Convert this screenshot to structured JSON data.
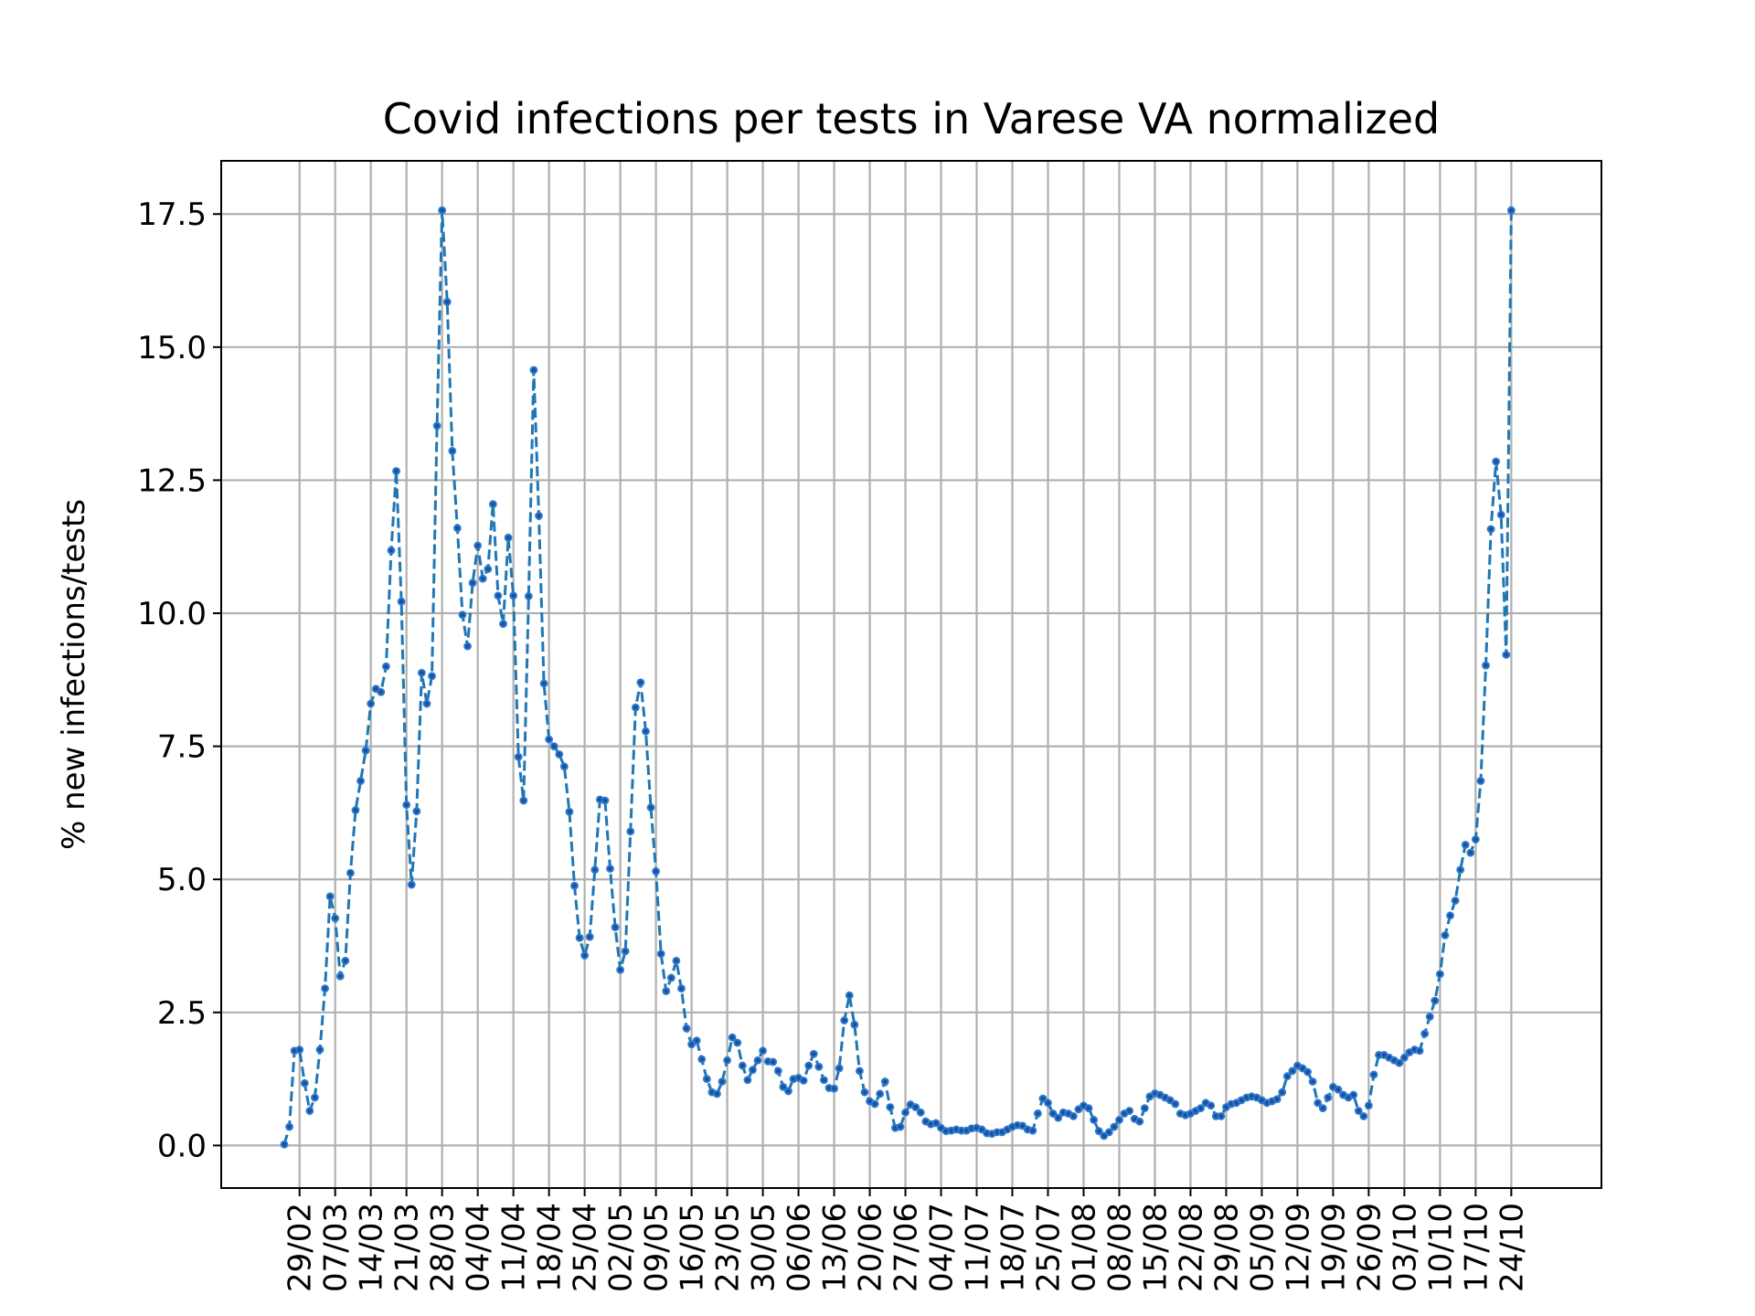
{
  "chart_data": {
    "type": "line",
    "title": "Covid infections per tests in Varese VA normalized",
    "xlabel": "",
    "ylabel": "% new infections/tests",
    "ylim": [
      -0.8,
      18.5
    ],
    "yticks": [
      "0.0",
      "2.5",
      "5.0",
      "7.5",
      "10.0",
      "12.5",
      "15.0",
      "17.5"
    ],
    "yticks_values": [
      0,
      2.5,
      5,
      7.5,
      10,
      12.5,
      15,
      17.5
    ],
    "xticks": [
      "29/02",
      "07/03",
      "14/03",
      "21/03",
      "28/03",
      "04/04",
      "11/04",
      "18/04",
      "25/04",
      "02/05",
      "09/05",
      "16/05",
      "23/05",
      "30/05",
      "06/06",
      "13/06",
      "20/06",
      "27/06",
      "04/07",
      "11/07",
      "18/07",
      "25/07",
      "01/08",
      "08/08",
      "15/08",
      "22/08",
      "29/08",
      "05/09",
      "12/09",
      "19/09",
      "26/09",
      "03/10",
      "10/10",
      "17/10",
      "24/10"
    ],
    "grid": true,
    "start_label": "26/02",
    "series": [
      {
        "color": "#1f77b4",
        "values": [
          0.02,
          0.35,
          1.78,
          1.8,
          1.17,
          0.65,
          0.9,
          1.8,
          2.95,
          4.68,
          4.27,
          3.18,
          3.47,
          5.12,
          6.3,
          6.85,
          7.42,
          8.3,
          8.58,
          8.52,
          9.0,
          11.18,
          12.67,
          10.22,
          6.4,
          4.9,
          6.28,
          8.88,
          8.3,
          8.82,
          13.52,
          17.57,
          15.85,
          13.05,
          11.6,
          9.97,
          9.38,
          10.57,
          11.27,
          10.65,
          10.83,
          12.05,
          10.33,
          9.8,
          11.42,
          10.33,
          7.3,
          6.48,
          10.32,
          14.57,
          11.83,
          8.68,
          7.63,
          7.5,
          7.35,
          7.12,
          6.27,
          4.88,
          3.9,
          3.57,
          3.92,
          5.18,
          6.5,
          6.48,
          5.2,
          4.1,
          3.3,
          3.65,
          5.9,
          8.23,
          8.7,
          7.78,
          6.35,
          5.15,
          3.6,
          2.9,
          3.15,
          3.47,
          2.95,
          2.2,
          1.9,
          1.97,
          1.62,
          1.25,
          1.0,
          0.97,
          1.2,
          1.6,
          2.03,
          1.93,
          1.5,
          1.23,
          1.42,
          1.6,
          1.78,
          1.58,
          1.57,
          1.4,
          1.1,
          1.02,
          1.25,
          1.27,
          1.22,
          1.5,
          1.72,
          1.48,
          1.23,
          1.08,
          1.07,
          1.45,
          2.35,
          2.82,
          2.27,
          1.4,
          1.0,
          0.83,
          0.78,
          0.97,
          1.2,
          0.72,
          0.33,
          0.35,
          0.62,
          0.77,
          0.72,
          0.62,
          0.45,
          0.4,
          0.42,
          0.33,
          0.27,
          0.28,
          0.3,
          0.28,
          0.28,
          0.32,
          0.33,
          0.3,
          0.23,
          0.22,
          0.25,
          0.25,
          0.3,
          0.35,
          0.38,
          0.37,
          0.3,
          0.28,
          0.6,
          0.88,
          0.8,
          0.6,
          0.52,
          0.62,
          0.6,
          0.55,
          0.68,
          0.75,
          0.7,
          0.48,
          0.27,
          0.18,
          0.25,
          0.35,
          0.48,
          0.6,
          0.65,
          0.5,
          0.45,
          0.7,
          0.92,
          0.98,
          0.95,
          0.9,
          0.85,
          0.78,
          0.6,
          0.57,
          0.6,
          0.65,
          0.7,
          0.8,
          0.75,
          0.55,
          0.55,
          0.72,
          0.78,
          0.8,
          0.85,
          0.9,
          0.92,
          0.9,
          0.85,
          0.8,
          0.83,
          0.87,
          1.0,
          1.3,
          1.4,
          1.5,
          1.45,
          1.38,
          1.2,
          0.8,
          0.7,
          0.9,
          1.1,
          1.05,
          0.95,
          0.9,
          0.95,
          0.65,
          0.55,
          0.75,
          1.33,
          1.7,
          1.7,
          1.65,
          1.6,
          1.55,
          1.65,
          1.75,
          1.8,
          1.78,
          2.1,
          2.42,
          2.72,
          3.22,
          3.95,
          4.32,
          4.6,
          5.18,
          5.65,
          5.5,
          5.75,
          6.85,
          9.02,
          11.58,
          12.85,
          11.85,
          9.22,
          17.57
        ]
      }
    ]
  }
}
